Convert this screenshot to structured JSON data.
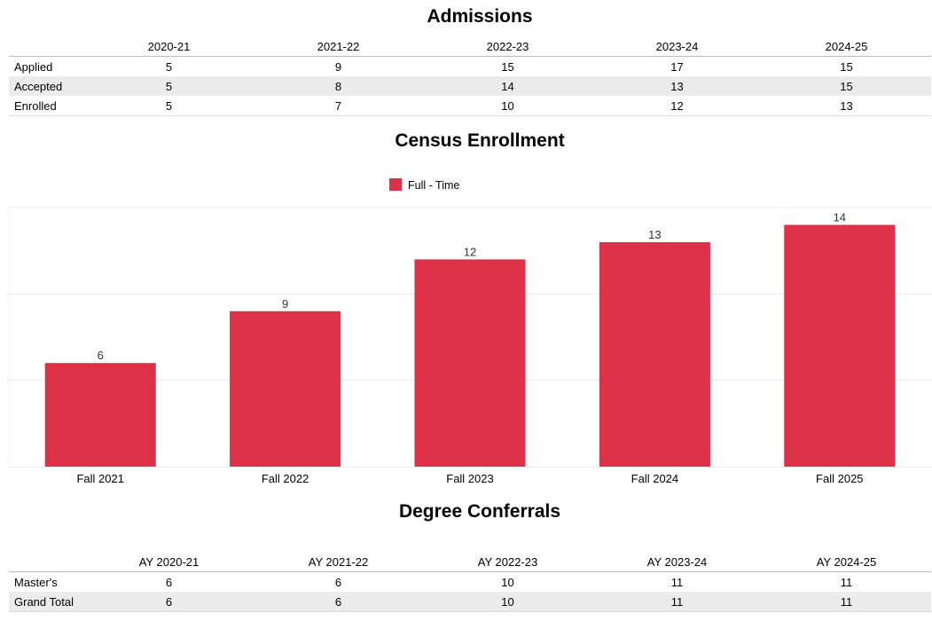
{
  "admissions": {
    "title": "Admissions",
    "columns": [
      "2020-21",
      "2021-22",
      "2022-23",
      "2023-24",
      "2024-25"
    ],
    "rows": [
      {
        "label": "Applied",
        "values": [
          "5",
          "9",
          "15",
          "17",
          "15"
        ]
      },
      {
        "label": "Accepted",
        "values": [
          "5",
          "8",
          "14",
          "13",
          "15"
        ]
      },
      {
        "label": "Enrolled",
        "values": [
          "5",
          "7",
          "10",
          "12",
          "13"
        ]
      }
    ]
  },
  "enrollment": {
    "title": "Census Enrollment"
  },
  "chart_data": {
    "type": "bar",
    "title": "Census Enrollment",
    "categories": [
      "Fall 2021",
      "Fall 2022",
      "Fall 2023",
      "Fall 2024",
      "Fall 2025"
    ],
    "series": [
      {
        "name": "Full - Time",
        "values": [
          6,
          9,
          12,
          13,
          14
        ],
        "color": "#dc3146"
      }
    ],
    "xlabel": "",
    "ylabel": "",
    "ylim": [
      0,
      15
    ],
    "grid": true,
    "legend": "top-center"
  },
  "conferrals": {
    "title": "Degree Conferrals",
    "columns": [
      "AY 2020-21",
      "AY 2021-22",
      "AY 2022-23",
      "AY 2023-24",
      "AY 2024-25"
    ],
    "rows": [
      {
        "label": "Master's",
        "values": [
          "6",
          "6",
          "10",
          "11",
          "11"
        ]
      },
      {
        "label": "Grand Total",
        "values": [
          "6",
          "6",
          "10",
          "11",
          "11"
        ]
      }
    ]
  }
}
